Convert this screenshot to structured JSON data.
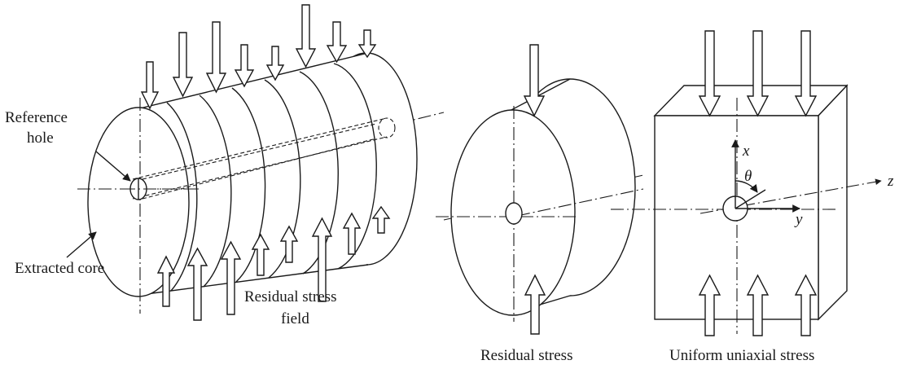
{
  "labels": {
    "reference_hole_line1": "Reference",
    "reference_hole_line2": "hole",
    "extracted_core": "Extracted core",
    "residual_stress_field_line1": "Residual stress",
    "residual_stress_field_line2": "field",
    "residual_stress": "Residual stress",
    "uniform_uniaxial_stress": "Uniform uniaxial stress"
  },
  "axes": {
    "x": "x",
    "y": "y",
    "z": "z",
    "theta": "θ"
  }
}
